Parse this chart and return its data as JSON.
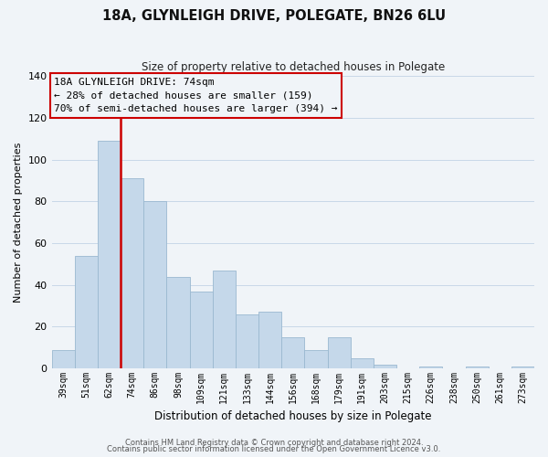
{
  "title": "18A, GLYNLEIGH DRIVE, POLEGATE, BN26 6LU",
  "subtitle": "Size of property relative to detached houses in Polegate",
  "xlabel": "Distribution of detached houses by size in Polegate",
  "ylabel": "Number of detached properties",
  "bar_labels": [
    "39sqm",
    "51sqm",
    "62sqm",
    "74sqm",
    "86sqm",
    "98sqm",
    "109sqm",
    "121sqm",
    "133sqm",
    "144sqm",
    "156sqm",
    "168sqm",
    "179sqm",
    "191sqm",
    "203sqm",
    "215sqm",
    "226sqm",
    "238sqm",
    "250sqm",
    "261sqm",
    "273sqm"
  ],
  "bar_values": [
    9,
    54,
    109,
    91,
    80,
    44,
    37,
    47,
    26,
    27,
    15,
    9,
    15,
    5,
    2,
    0,
    1,
    0,
    1,
    0,
    1
  ],
  "bar_color": "#c5d8ea",
  "bar_edge_color": "#9ab8d0",
  "vline_index": 3,
  "vline_color": "#cc0000",
  "annotation_text_line1": "18A GLYNLEIGH DRIVE: 74sqm",
  "annotation_text_line2": "← 28% of detached houses are smaller (159)",
  "annotation_text_line3": "70% of semi-detached houses are larger (394) →",
  "box_edge_color": "#cc0000",
  "ylim": [
    0,
    140
  ],
  "yticks": [
    0,
    20,
    40,
    60,
    80,
    100,
    120,
    140
  ],
  "footer1": "Contains HM Land Registry data © Crown copyright and database right 2024.",
  "footer2": "Contains public sector information licensed under the Open Government Licence v3.0.",
  "bg_color": "#f0f4f8",
  "grid_color": "#c8d8e8",
  "title_fontsize": 10.5,
  "subtitle_fontsize": 8.5,
  "xlabel_fontsize": 8.5,
  "ylabel_fontsize": 8,
  "tick_fontsize": 7,
  "annotation_fontsize": 8,
  "footer_fontsize": 6
}
